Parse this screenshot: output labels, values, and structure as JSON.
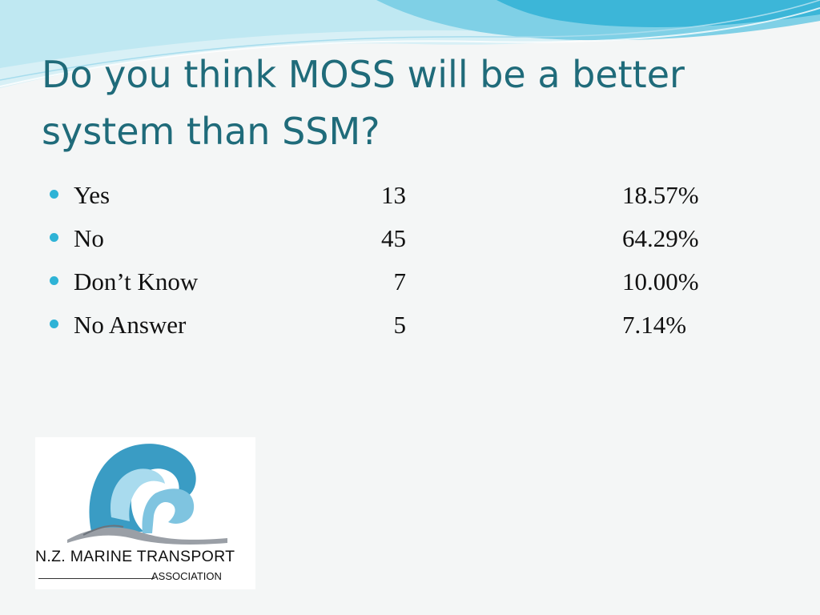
{
  "slide": {
    "title": "Do you think MOSS will be a better system than SSM?",
    "answers": [
      {
        "label": "Yes",
        "count": "13",
        "percent": "18.57%"
      },
      {
        "label": "No",
        "count": "45",
        "percent": "64.29%"
      },
      {
        "label": "Don’t Know",
        "count": "7",
        "percent": "10.00%"
      },
      {
        "label": "No Answer",
        "count": "5",
        "percent": "7.14%"
      }
    ]
  },
  "logo": {
    "name": "N.Z. MARINE TRANSPORT",
    "subtitle": "ASSOCIATION",
    "icon": "stylized-wave-icon"
  },
  "colors": {
    "title": "#1f6b7a",
    "bullet": "#2eb3d6",
    "wave_light": "#bfe8f2",
    "wave_mid": "#7fd0e6",
    "wave_dark": "#3cb6d8",
    "logo_blue": "#3a9cc4"
  }
}
